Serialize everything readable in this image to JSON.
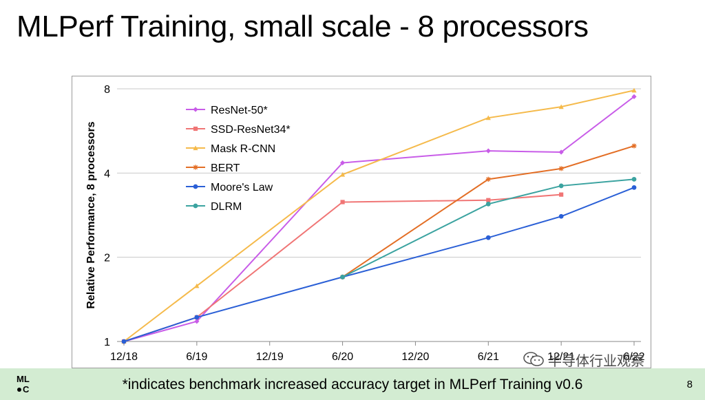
{
  "slide": {
    "title": "MLPerf Training, small scale - 8 processors",
    "footer_note": "*indicates benchmark increased accuracy target in MLPerf Training v0.6",
    "page_number": "8",
    "logo_line1": "ML",
    "logo_line2": "C",
    "watermark_text": "半导体行业观察"
  },
  "chart_data": {
    "type": "line",
    "title": "",
    "xlabel": "",
    "ylabel": "Relative Performance, 8 processors",
    "y_scale": "log2",
    "ylim": [
      1,
      8
    ],
    "y_ticks": [
      1,
      2,
      4,
      8
    ],
    "y_tick_labels": [
      "1",
      "2",
      "4",
      "8"
    ],
    "x_ticks": [
      "12/18",
      "6/19",
      "12/19",
      "6/20",
      "12/20",
      "6/21",
      "12/21",
      "6/22"
    ],
    "grid": "horizontal",
    "legend": "upper-left inside",
    "series": [
      {
        "name": "ResNet-50*",
        "color": "#c85ce8",
        "marker": "diamond",
        "points": [
          [
            "12/18",
            1.0
          ],
          [
            "6/19",
            1.18
          ],
          [
            "6/20",
            4.35
          ],
          [
            "6/21",
            4.8
          ],
          [
            "12/21",
            4.75
          ],
          [
            "6/22",
            7.5
          ]
        ]
      },
      {
        "name": "SSD-ResNet34*",
        "color": "#f07575",
        "marker": "square",
        "points": [
          [
            "12/18",
            1.0
          ],
          [
            "6/19",
            1.22
          ],
          [
            "6/20",
            3.15
          ],
          [
            "6/21",
            3.2
          ],
          [
            "12/21",
            3.35
          ]
        ]
      },
      {
        "name": "Mask R-CNN",
        "color": "#f5ba4b",
        "marker": "triangle",
        "points": [
          [
            "12/18",
            1.0
          ],
          [
            "6/19",
            1.58
          ],
          [
            "6/20",
            3.95
          ],
          [
            "6/21",
            6.3
          ],
          [
            "12/21",
            6.9
          ],
          [
            "6/22",
            7.9
          ]
        ]
      },
      {
        "name": "BERT",
        "color": "#e36e25",
        "marker": "star",
        "points": [
          [
            "6/20",
            1.7
          ],
          [
            "6/21",
            3.8
          ],
          [
            "12/21",
            4.15
          ],
          [
            "6/22",
            5.0
          ]
        ]
      },
      {
        "name": "Moore's Law",
        "color": "#2a5fd6",
        "marker": "circle",
        "points": [
          [
            "12/18",
            1.0
          ],
          [
            "6/19",
            1.22
          ],
          [
            "6/20",
            1.7
          ],
          [
            "6/21",
            2.35
          ],
          [
            "12/21",
            2.8
          ],
          [
            "6/22",
            3.55
          ]
        ]
      },
      {
        "name": "DLRM",
        "color": "#3ba3a0",
        "marker": "circle",
        "points": [
          [
            "6/20",
            1.7
          ],
          [
            "6/21",
            3.1
          ],
          [
            "12/21",
            3.6
          ],
          [
            "6/22",
            3.8
          ]
        ]
      }
    ]
  }
}
